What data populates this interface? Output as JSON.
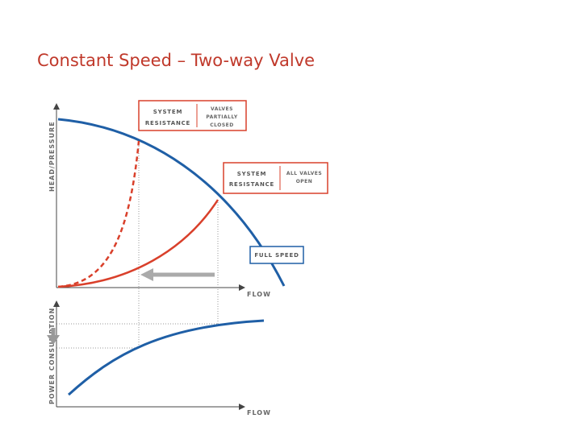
{
  "title": "Constant Speed – Two-way Valve",
  "upper_chart": {
    "y_label": "HEAD/PRESSURE",
    "x_label": "FLOW"
  },
  "lower_chart": {
    "y_label": "POWER CONSUMPTION",
    "x_label": "FLOW"
  },
  "boxes": [
    {
      "left": [
        "SYSTEM",
        "RESISTANCE"
      ],
      "right": [
        "VALVES",
        "PARTIALLY",
        "CLOSED"
      ]
    },
    {
      "left": [
        "SYSTEM",
        "RESISTANCE"
      ],
      "right": [
        "ALL VALVES",
        "OPEN"
      ]
    },
    {
      "label": "FULL SPEED"
    }
  ]
}
